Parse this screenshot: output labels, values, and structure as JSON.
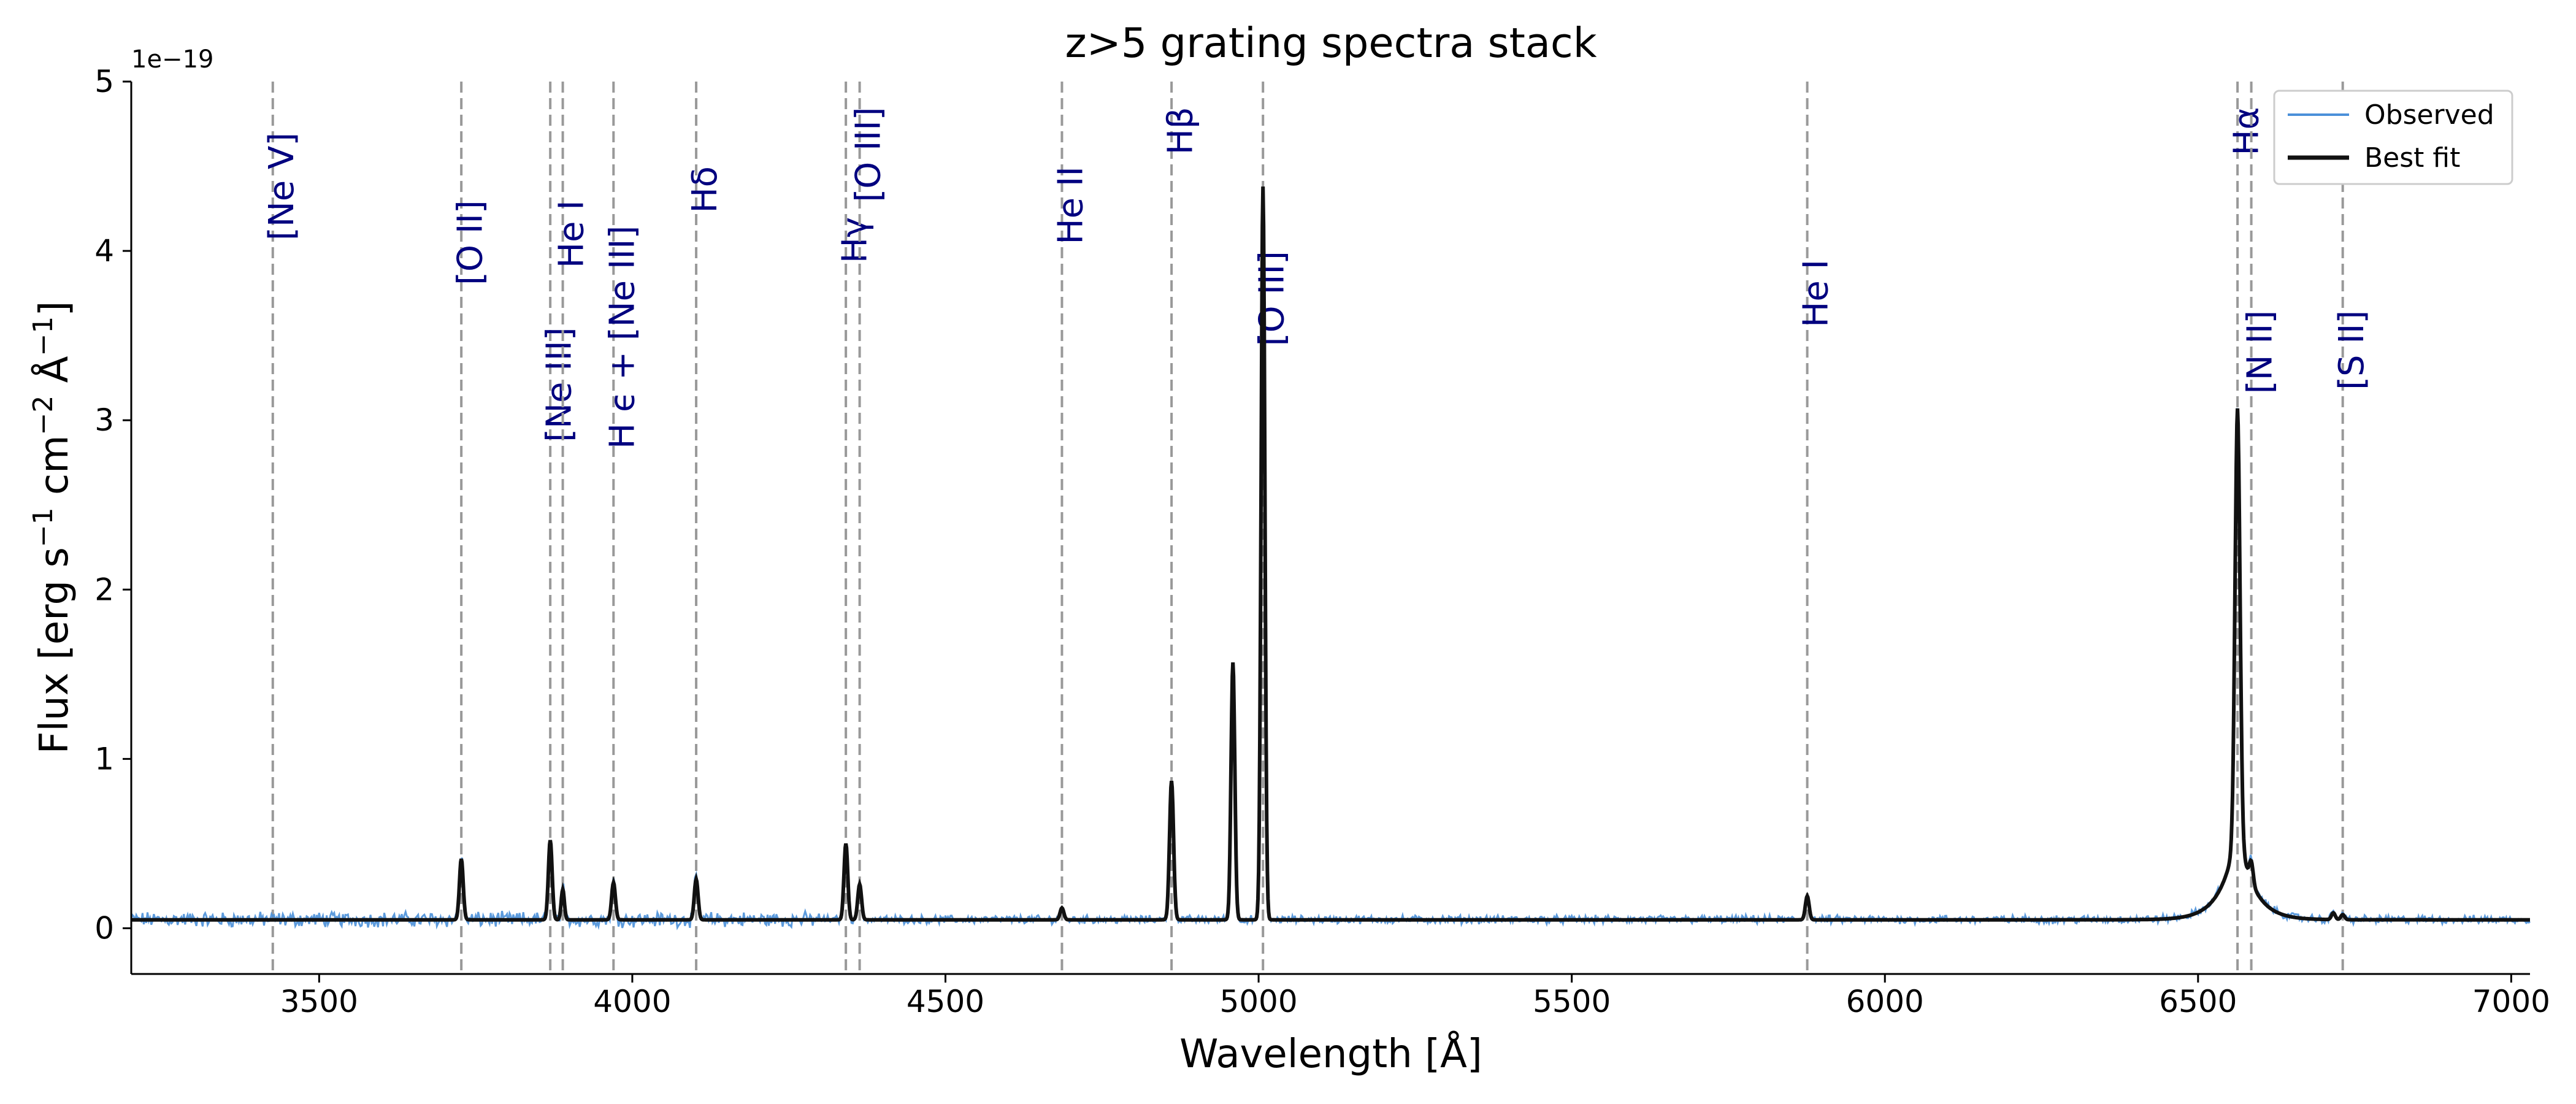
{
  "chart_data": {
    "type": "line",
    "title": "z>5 grating spectra stack",
    "xlabel": "Wavelength [Å]",
    "ylabel_parts": [
      "Flux  [erg s",
      "−1",
      " cm",
      "−2",
      " Å",
      "−1",
      "]"
    ],
    "y_offset_label": "1e−19",
    "xlim": [
      3200,
      7030
    ],
    "ylim": [
      -0.27,
      5.0
    ],
    "x_ticks": [
      3500,
      4000,
      4500,
      5000,
      5500,
      6000,
      6500,
      7000
    ],
    "y_ticks": [
      0,
      1,
      2,
      3,
      4,
      5
    ],
    "grid": false,
    "legend_position": "top-right",
    "series": [
      {
        "name": "Observed",
        "color": "#4a90d9",
        "continuum": 0.05,
        "noise": 0.035
      },
      {
        "name": "Best fit",
        "color": "#111111",
        "continuum": 0.05
      }
    ],
    "emission_lines": [
      {
        "wavelength": 3727,
        "peak": 0.36,
        "width": 3.0
      },
      {
        "wavelength": 3869,
        "peak": 0.47,
        "width": 3.0
      },
      {
        "wavelength": 3889,
        "peak": 0.18,
        "width": 2.5
      },
      {
        "wavelength": 3970,
        "peak": 0.22,
        "width": 3.0
      },
      {
        "wavelength": 4102,
        "peak": 0.24,
        "width": 3.0
      },
      {
        "wavelength": 4341,
        "peak": 0.45,
        "width": 3.0
      },
      {
        "wavelength": 4363,
        "peak": 0.21,
        "width": 3.0
      },
      {
        "wavelength": 4686,
        "peak": 0.07,
        "width": 3.0
      },
      {
        "wavelength": 4861,
        "peak": 0.82,
        "width": 3.2
      },
      {
        "wavelength": 4959,
        "peak": 1.52,
        "width": 3.0
      },
      {
        "wavelength": 5007,
        "peak": 4.33,
        "width": 3.0
      },
      {
        "wavelength": 5876,
        "peak": 0.14,
        "width": 3.0
      },
      {
        "wavelength": 6563,
        "peak": 2.47,
        "width": 4.0,
        "broad_peak": 0.55,
        "broad_width": 25
      },
      {
        "wavelength": 6585,
        "peak": 0.12,
        "width": 3.0
      },
      {
        "wavelength": 6716,
        "peak": 0.04,
        "width": 3.0
      },
      {
        "wavelength": 6731,
        "peak": 0.03,
        "width": 3.0
      }
    ],
    "line_markers": [
      {
        "wavelength": 3426,
        "label": "[Ne V]",
        "label_y": 4.7
      },
      {
        "wavelength": 3727,
        "label": "[O II]",
        "label_y": 4.3
      },
      {
        "wavelength": 3869,
        "label": "[Ne III]",
        "label_y": 3.55
      },
      {
        "wavelength": 3889,
        "label": "He I",
        "label_y": 4.3
      },
      {
        "wavelength": 3970,
        "label": "H ϵ + [Ne III]",
        "label_y": 4.15
      },
      {
        "wavelength": 4102,
        "label": "Hδ",
        "label_y": 4.5
      },
      {
        "wavelength": 4341,
        "label": "Hγ",
        "label_y": 4.2
      },
      {
        "wavelength": 4363,
        "label": "[O III]",
        "label_y": 4.85
      },
      {
        "wavelength": 4686,
        "label": "He II",
        "label_y": 4.5
      },
      {
        "wavelength": 4861,
        "label": "Hβ",
        "label_y": 4.85
      },
      {
        "wavelength": 5007,
        "label": "[O III]",
        "label_y": 4.0
      },
      {
        "wavelength": 5876,
        "label": "He I",
        "label_y": 3.95
      },
      {
        "wavelength": 6563,
        "label": "Hα",
        "label_y": 4.85
      },
      {
        "wavelength": 6585,
        "label": "[N II]",
        "label_y": 3.65
      },
      {
        "wavelength": 6731,
        "label": "[S II]",
        "label_y": 3.65
      }
    ],
    "marker_color": "#999999",
    "label_color": "#00007f"
  }
}
